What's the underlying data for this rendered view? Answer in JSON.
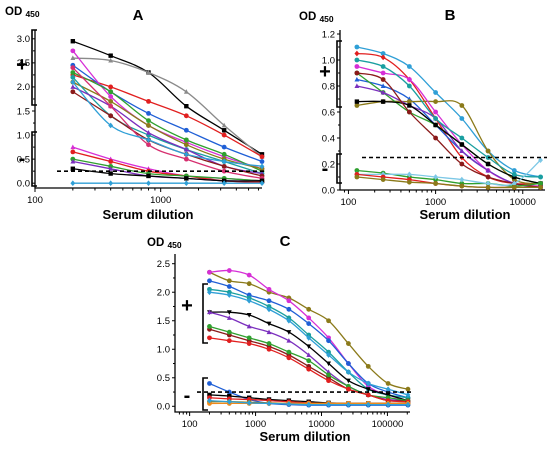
{
  "chart_data": [
    {
      "panel": "A",
      "type": "line",
      "xlabel": "Serum dilution",
      "ylabel": "OD 450",
      "x_scale": "log",
      "xlim": [
        100,
        6400
      ],
      "ylim": [
        -0.1,
        3.1
      ],
      "x_ticks": [
        100,
        1000
      ],
      "x_tick_labels": [
        "100",
        "1000"
      ],
      "y_ticks": [
        0.0,
        0.5,
        1.0,
        1.5,
        2.0,
        2.5,
        3.0
      ],
      "y_tick_labels": [
        "0.0",
        "0.5",
        "1.0",
        "1.5",
        "2.0",
        "2.5",
        "3.0"
      ],
      "cutoff": 0.25,
      "group_labels": [
        "+",
        "-"
      ],
      "x": [
        200,
        400,
        800,
        1600,
        3200,
        6400
      ],
      "series": [
        {
          "color": "#000000",
          "marker": "square",
          "values": [
            2.95,
            2.65,
            2.3,
            1.6,
            1.1,
            0.6
          ]
        },
        {
          "color": "#8a8a8a",
          "marker": "triangle",
          "values": [
            2.6,
            2.55,
            2.3,
            1.9,
            1.2,
            0.55
          ]
        },
        {
          "color": "#e11f1f",
          "marker": "circle",
          "values": [
            2.25,
            2.0,
            1.7,
            1.4,
            1.0,
            0.55
          ]
        },
        {
          "color": "#1f5fd6",
          "marker": "circle",
          "values": [
            2.45,
            1.9,
            1.45,
            1.1,
            0.75,
            0.45
          ]
        },
        {
          "color": "#d62fd6",
          "marker": "circle",
          "values": [
            2.75,
            1.8,
            1.2,
            0.85,
            0.55,
            0.3
          ]
        },
        {
          "color": "#2fa02f",
          "marker": "circle",
          "values": [
            2.3,
            1.9,
            1.3,
            0.9,
            0.6,
            0.25
          ]
        },
        {
          "color": "#8b7a1a",
          "marker": "circle",
          "values": [
            2.1,
            1.7,
            1.2,
            0.8,
            0.5,
            0.3
          ]
        },
        {
          "color": "#1a9fa0",
          "marker": "circle",
          "values": [
            2.2,
            1.4,
            1.0,
            0.7,
            0.45,
            0.2
          ]
        },
        {
          "color": "#7b2fbe",
          "marker": "triangle",
          "values": [
            2.0,
            1.6,
            1.05,
            0.7,
            0.35,
            0.2
          ]
        },
        {
          "color": "#8b1a1a",
          "marker": "circle",
          "values": [
            1.9,
            1.4,
            0.9,
            0.6,
            0.35,
            0.15
          ]
        },
        {
          "color": "#d62f6f",
          "marker": "circle",
          "values": [
            2.4,
            1.6,
            0.8,
            0.5,
            0.25,
            0.1
          ]
        },
        {
          "color": "#2f9fd6",
          "marker": "diamond",
          "values": [
            2.1,
            1.2,
            0.9,
            0.6,
            0.45,
            0.35
          ]
        },
        {
          "color": "#d62fd6",
          "marker": "triangle",
          "values": [
            0.75,
            0.5,
            0.3,
            0.15,
            0.1,
            0.05
          ]
        },
        {
          "color": "#e11f1f",
          "marker": "circle",
          "values": [
            0.65,
            0.45,
            0.25,
            0.15,
            0.05,
            0.02
          ]
        },
        {
          "color": "#2fa02f",
          "marker": "circle",
          "values": [
            0.5,
            0.35,
            0.2,
            0.15,
            0.1,
            0.05
          ]
        },
        {
          "color": "#7b2fbe",
          "marker": "triangle",
          "values": [
            0.45,
            0.3,
            0.15,
            0.1,
            0.05,
            0.05
          ]
        },
        {
          "color": "#000000",
          "marker": "square",
          "values": [
            0.3,
            0.2,
            0.15,
            0.1,
            0.05,
            0.05
          ]
        },
        {
          "color": "#2f9fd6",
          "marker": "diamond",
          "values": [
            0.0,
            0.0,
            0.0,
            0.0,
            0.0,
            0.0
          ]
        }
      ]
    },
    {
      "panel": "B",
      "type": "line",
      "xlabel": "Serum dilution",
      "ylabel": "OD 450",
      "x_scale": "log",
      "xlim": [
        80,
        18000
      ],
      "ylim": [
        0,
        1.2
      ],
      "x_ticks": [
        100,
        1000,
        10000
      ],
      "x_tick_labels": [
        "100",
        "1000",
        "10000"
      ],
      "y_ticks": [
        0.0,
        0.2,
        0.4,
        0.6,
        0.8,
        1.0,
        1.2
      ],
      "y_tick_labels": [
        "0.0",
        "0.2",
        "0.4",
        "0.6",
        "0.8",
        "1.0",
        "1.2"
      ],
      "cutoff": 0.25,
      "group_labels": [
        "+",
        "-"
      ],
      "x": [
        125,
        250,
        500,
        1000,
        2000,
        4000,
        8000,
        16000
      ],
      "series": [
        {
          "color": "#2f9fd6",
          "marker": "circle",
          "values": [
            1.1,
            1.05,
            0.95,
            0.75,
            0.55,
            0.3,
            0.15,
            0.1
          ]
        },
        {
          "color": "#e11f1f",
          "marker": "diamond",
          "values": [
            1.05,
            1.02,
            0.85,
            0.55,
            0.25,
            0.1,
            0.05,
            0.05
          ]
        },
        {
          "color": "#1f5fd6",
          "marker": "triangle",
          "values": [
            0.85,
            0.8,
            0.7,
            0.5,
            0.3,
            0.15,
            0.05,
            0.02
          ]
        },
        {
          "color": "#8b7a1a",
          "marker": "circle",
          "values": [
            0.65,
            0.68,
            0.68,
            0.68,
            0.65,
            0.3,
            0.08,
            0.05
          ]
        },
        {
          "color": "#d62fd6",
          "marker": "circle",
          "values": [
            0.95,
            0.9,
            0.85,
            0.6,
            0.35,
            0.15,
            0.05,
            0.03
          ]
        },
        {
          "color": "#2fa02f",
          "marker": "circle",
          "values": [
            0.9,
            0.75,
            0.6,
            0.5,
            0.35,
            0.2,
            0.1,
            0.05
          ]
        },
        {
          "color": "#7b2fbe",
          "marker": "triangle",
          "values": [
            0.8,
            0.75,
            0.65,
            0.55,
            0.3,
            0.15,
            0.05,
            0.02
          ]
        },
        {
          "color": "#000000",
          "marker": "square",
          "values": [
            0.68,
            0.68,
            0.65,
            0.5,
            0.35,
            0.2,
            0.1,
            0.05
          ]
        },
        {
          "color": "#8b1a1a",
          "marker": "circle",
          "values": [
            0.9,
            0.85,
            0.6,
            0.4,
            0.2,
            0.1,
            0.05,
            0.02
          ]
        },
        {
          "color": "#1a9fa0",
          "marker": "circle",
          "values": [
            1.0,
            0.95,
            0.8,
            0.55,
            0.4,
            0.25,
            0.12,
            0.1
          ]
        },
        {
          "color": "#2fa02f",
          "marker": "circle",
          "values": [
            0.15,
            0.13,
            0.1,
            0.08,
            0.05,
            0.05,
            0.03,
            0.05
          ]
        },
        {
          "color": "#7dc8e6",
          "marker": "diamond",
          "values": [
            0.12,
            0.12,
            0.12,
            0.1,
            0.08,
            0.05,
            0.05,
            0.23
          ]
        },
        {
          "color": "#e11f1f",
          "marker": "circle",
          "values": [
            0.12,
            0.1,
            0.08,
            0.05,
            0.03,
            0.02,
            0.02,
            0.02
          ]
        },
        {
          "color": "#8b7a1a",
          "marker": "circle",
          "values": [
            0.1,
            0.08,
            0.06,
            0.05,
            0.03,
            0.02,
            0.02,
            0.02
          ]
        }
      ]
    },
    {
      "panel": "C",
      "type": "line",
      "xlabel": "Serum dilution",
      "ylabel": "OD 450",
      "x_scale": "log",
      "xlim": [
        60,
        220000
      ],
      "ylim": [
        -0.1,
        2.6
      ],
      "x_ticks": [
        100,
        1000,
        10000,
        100000
      ],
      "x_tick_labels": [
        "100",
        "1000",
        "10000",
        "100000"
      ],
      "y_ticks": [
        0.0,
        0.5,
        1.0,
        1.5,
        2.0,
        2.5
      ],
      "y_tick_labels": [
        "0.0",
        "0.5",
        "1.0",
        "1.5",
        "2.0",
        "2.5"
      ],
      "cutoff": 0.25,
      "group_labels": [
        "+",
        "-"
      ],
      "x": [
        200,
        400,
        800,
        1600,
        3200,
        6400,
        12800,
        25600,
        51200,
        102400,
        204800
      ],
      "series": [
        {
          "color": "#8b7a1a",
          "marker": "circle",
          "values": [
            2.35,
            2.2,
            2.15,
            2.0,
            1.9,
            1.7,
            1.5,
            1.1,
            0.7,
            0.4,
            0.3
          ]
        },
        {
          "color": "#d62fd6",
          "marker": "circle",
          "values": [
            2.35,
            2.38,
            2.3,
            2.05,
            1.85,
            1.55,
            1.2,
            0.75,
            0.35,
            0.2,
            0.1
          ]
        },
        {
          "color": "#1f5fd6",
          "marker": "circle",
          "values": [
            2.2,
            2.1,
            1.95,
            1.85,
            1.7,
            1.45,
            1.15,
            0.75,
            0.4,
            0.25,
            0.15
          ]
        },
        {
          "color": "#1a9fa0",
          "marker": "circle",
          "values": [
            2.05,
            2.0,
            1.9,
            1.75,
            1.55,
            1.25,
            0.95,
            0.6,
            0.3,
            0.2,
            0.15
          ]
        },
        {
          "color": "#2f9fd6",
          "marker": "diamond",
          "values": [
            2.0,
            1.95,
            1.85,
            1.7,
            1.5,
            1.2,
            0.9,
            0.6,
            0.4,
            0.3,
            0.2
          ]
        },
        {
          "color": "#000000",
          "marker": "triangle-down",
          "values": [
            1.65,
            1.65,
            1.6,
            1.45,
            1.3,
            1.05,
            0.75,
            0.45,
            0.3,
            0.2,
            0.1
          ]
        },
        {
          "color": "#7b2fbe",
          "marker": "triangle",
          "values": [
            1.65,
            1.55,
            1.4,
            1.3,
            1.15,
            0.9,
            0.6,
            0.35,
            0.2,
            0.12,
            0.1
          ]
        },
        {
          "color": "#8b1a1a",
          "marker": "circle",
          "values": [
            1.35,
            1.25,
            1.15,
            1.05,
            0.9,
            0.7,
            0.5,
            0.3,
            0.2,
            0.1,
            0.1
          ]
        },
        {
          "color": "#2fa02f",
          "marker": "circle",
          "values": [
            1.4,
            1.3,
            1.2,
            1.1,
            0.95,
            0.8,
            0.55,
            0.35,
            0.2,
            0.15,
            0.1
          ]
        },
        {
          "color": "#e11f1f",
          "marker": "circle",
          "values": [
            1.2,
            1.15,
            1.1,
            1.0,
            0.85,
            0.65,
            0.45,
            0.3,
            0.2,
            0.1,
            0.08
          ]
        },
        {
          "color": "#1f5fd6",
          "marker": "circle",
          "values": [
            0.4,
            0.25,
            0.12,
            0.05,
            0.03,
            0.02,
            0.02,
            0.02,
            0.02,
            0.02,
            0.02
          ]
        },
        {
          "color": "#000000",
          "marker": "square",
          "values": [
            0.2,
            0.18,
            0.15,
            0.12,
            0.1,
            0.08,
            0.06,
            0.05,
            0.05,
            0.05,
            0.05
          ]
        },
        {
          "color": "#e11f1f",
          "marker": "circle",
          "values": [
            0.15,
            0.13,
            0.12,
            0.1,
            0.08,
            0.06,
            0.05,
            0.05,
            0.05,
            0.05,
            0.05
          ]
        },
        {
          "color": "#8b7a1a",
          "marker": "circle",
          "values": [
            0.08,
            0.08,
            0.07,
            0.06,
            0.05,
            0.05,
            0.05,
            0.05,
            0.05,
            0.05,
            0.05
          ]
        },
        {
          "color": "#f08a1a",
          "marker": "circle",
          "values": [
            0.05,
            0.05,
            0.05,
            0.05,
            0.05,
            0.05,
            0.05,
            0.05,
            0.05,
            0.05,
            0.05
          ]
        },
        {
          "color": "#2f9fd6",
          "marker": "diamond",
          "values": [
            0.1,
            0.08,
            0.06,
            0.05,
            0.04,
            0.03,
            0.03,
            0.03,
            0.03,
            0.03,
            0.03
          ]
        }
      ]
    }
  ]
}
